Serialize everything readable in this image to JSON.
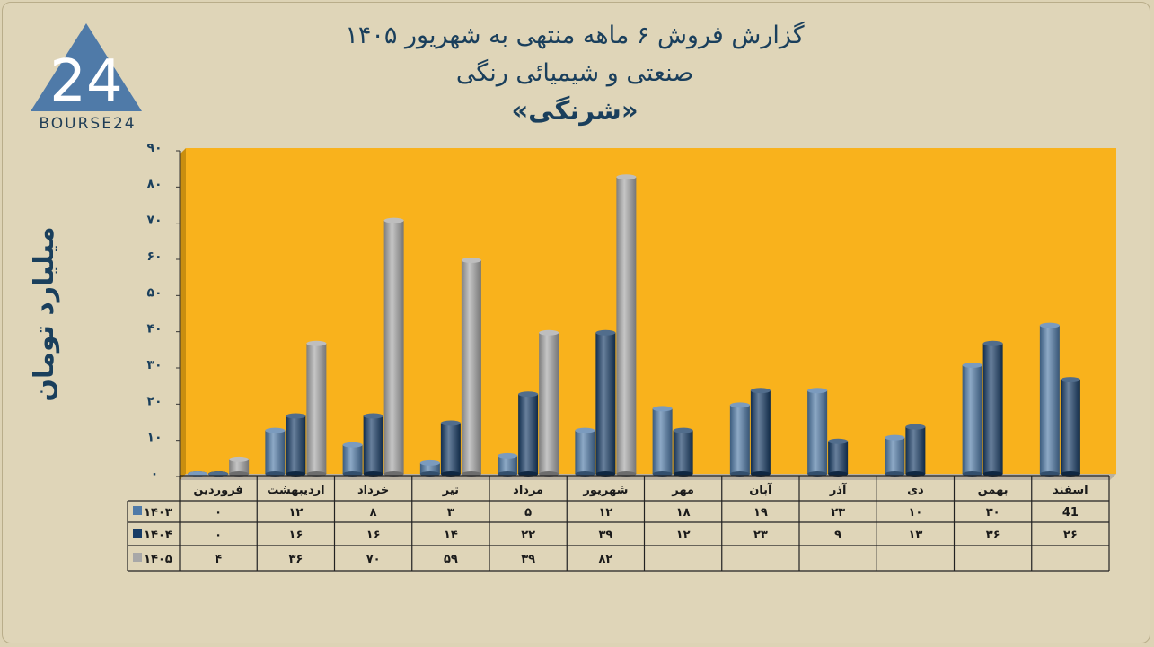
{
  "header": {
    "title_line1": "گزارش  فروش ۶ ماهه منتهی به شهریور ۱۴۰۵",
    "title_line2": "صنعتی و شیمیائی رنگی",
    "title_line3": "«شرنگی»"
  },
  "logo": {
    "text": "BOURSE24",
    "mark": "24",
    "icon": "triangle-logo-icon"
  },
  "colors": {
    "plot_bg": "#f9b21c",
    "wall_left": "#c98e0f",
    "s1403": "#4f7aa8",
    "s1404": "#173c66",
    "s1405": "#a8a8a8"
  },
  "chart_data": {
    "type": "bar",
    "ylabel": "میلیارد تومان",
    "ylim": [
      0,
      90
    ],
    "yticks": [
      "۰",
      "۱۰",
      "۲۰",
      "۳۰",
      "۴۰",
      "۵۰",
      "۶۰",
      "۷۰",
      "۸۰",
      "۹۰"
    ],
    "categories": [
      "فروردین",
      "اردیبهشت",
      "خرداد",
      "تیر",
      "مرداد",
      "شهریور",
      "مهر",
      "آبان",
      "آذر",
      "دی",
      "بهمن",
      "اسفند"
    ],
    "series": [
      {
        "name": "۱۴۰۳",
        "values": [
          0,
          12,
          8,
          3,
          5,
          12,
          18,
          19,
          23,
          10,
          30,
          41
        ],
        "labels": [
          "۰",
          "۱۲",
          "۸",
          "۳",
          "۵",
          "۱۲",
          "۱۸",
          "۱۹",
          "۲۳",
          "۱۰",
          "۳۰",
          "41"
        ]
      },
      {
        "name": "۱۴۰۴",
        "values": [
          0,
          16,
          16,
          14,
          22,
          39,
          12,
          23,
          9,
          13,
          36,
          26
        ],
        "labels": [
          "۰",
          "۱۶",
          "۱۶",
          "۱۴",
          "۲۲",
          "۳۹",
          "۱۲",
          "۲۳",
          "۹",
          "۱۳",
          "۳۶",
          "۲۶"
        ]
      },
      {
        "name": "۱۴۰۵",
        "values": [
          4,
          36,
          70,
          59,
          39,
          82,
          null,
          null,
          null,
          null,
          null,
          null
        ],
        "labels": [
          "۴",
          "۳۶",
          "۷۰",
          "۵۹",
          "۳۹",
          "۸۲",
          "",
          "",
          "",
          "",
          "",
          ""
        ]
      }
    ],
    "grid": false,
    "legend": "data-table"
  }
}
